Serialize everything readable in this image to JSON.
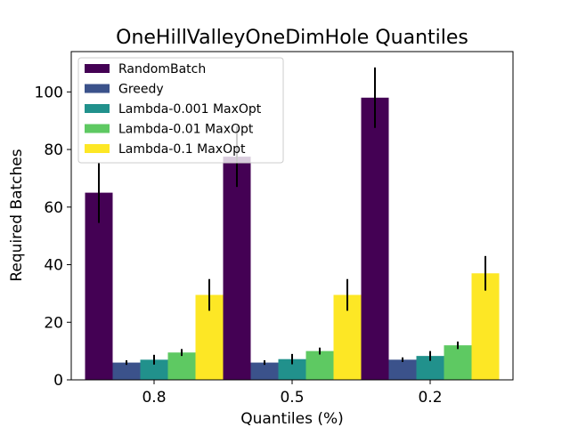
{
  "chart_data": {
    "type": "bar",
    "title": "OneHillValleyOneDimHole Quantiles",
    "xlabel": "Quantiles (%)",
    "ylabel": "Required Batches",
    "categories": [
      "0.8",
      "0.5",
      "0.2"
    ],
    "ylim": [
      0,
      114
    ],
    "yticks": [
      0,
      20,
      40,
      60,
      80,
      100
    ],
    "legend_position": "top-left",
    "series": [
      {
        "name": "RandomBatch",
        "color": "#440154",
        "values": [
          65,
          77.5,
          98
        ],
        "errors": [
          10.5,
          10.5,
          10.5
        ]
      },
      {
        "name": "Greedy",
        "color": "#3b528b",
        "values": [
          6,
          6,
          7
        ],
        "errors": [
          0.8,
          0.8,
          0.8
        ]
      },
      {
        "name": "Lambda-0.001 MaxOpt",
        "color": "#21918c",
        "values": [
          7,
          7.2,
          8.3
        ],
        "errors": [
          1.7,
          1.8,
          1.7
        ]
      },
      {
        "name": "Lambda-0.01 MaxOpt",
        "color": "#5ec962",
        "values": [
          9.5,
          10,
          12
        ],
        "errors": [
          1.2,
          1.2,
          1.3
        ]
      },
      {
        "name": "Lambda-0.1 MaxOpt",
        "color": "#fde725",
        "values": [
          29.5,
          29.5,
          37
        ],
        "errors": [
          5.5,
          5.5,
          6
        ]
      }
    ]
  }
}
